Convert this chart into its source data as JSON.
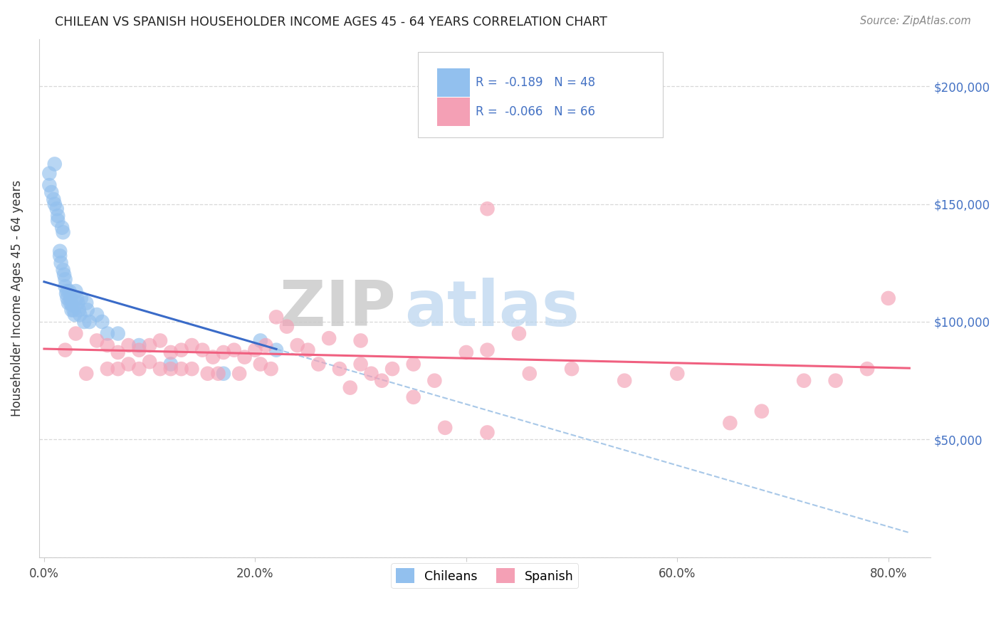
{
  "title": "CHILEAN VS SPANISH HOUSEHOLDER INCOME AGES 45 - 64 YEARS CORRELATION CHART",
  "source": "Source: ZipAtlas.com",
  "ylabel": "Householder Income Ages 45 - 64 years",
  "xlabel_ticks": [
    "0.0%",
    "20.0%",
    "40.0%",
    "60.0%",
    "80.0%"
  ],
  "xlabel_vals": [
    0.0,
    0.2,
    0.4,
    0.6,
    0.8
  ],
  "ylim": [
    0,
    220000
  ],
  "xlim": [
    -0.005,
    0.84
  ],
  "ytick_vals": [
    0,
    50000,
    100000,
    150000,
    200000
  ],
  "ytick_labels": [
    "",
    "$50,000",
    "$100,000",
    "$150,000",
    "$200,000"
  ],
  "watermark_zip": "ZIP",
  "watermark_atlas": "atlas",
  "legend1_text": "R =  -0.189   N = 48",
  "legend2_text": "R =  -0.066   N = 66",
  "chilean_color": "#92C0EE",
  "spanish_color": "#F4A0B5",
  "chilean_line_color": "#3A6BC8",
  "spanish_line_color": "#F06080",
  "dashed_line_color": "#A8C8E8",
  "background_color": "#ffffff",
  "grid_color": "#d8d8d8",
  "ch_slope": -130000,
  "ch_intercept": 117000,
  "ch_line_x0": 0.0,
  "ch_line_x1": 0.22,
  "sp_slope": -10000,
  "sp_intercept": 88500,
  "sp_line_x0": 0.0,
  "sp_line_x1": 0.82,
  "dash_line_x0": 0.22,
  "dash_line_x1": 0.82,
  "chilean_x": [
    0.005,
    0.005,
    0.007,
    0.009,
    0.01,
    0.01,
    0.012,
    0.013,
    0.013,
    0.015,
    0.015,
    0.016,
    0.017,
    0.018,
    0.018,
    0.019,
    0.02,
    0.02,
    0.021,
    0.022,
    0.022,
    0.023,
    0.024,
    0.025,
    0.025,
    0.026,
    0.027,
    0.028,
    0.029,
    0.03,
    0.031,
    0.032,
    0.033,
    0.034,
    0.035,
    0.038,
    0.04,
    0.041,
    0.043,
    0.05,
    0.055,
    0.06,
    0.07,
    0.09,
    0.12,
    0.17,
    0.205,
    0.22
  ],
  "chilean_y": [
    163000,
    158000,
    155000,
    152000,
    167000,
    150000,
    148000,
    145000,
    143000,
    130000,
    128000,
    125000,
    140000,
    138000,
    122000,
    120000,
    118000,
    115000,
    112000,
    113000,
    110000,
    108000,
    113000,
    110000,
    108000,
    105000,
    107000,
    105000,
    103000,
    113000,
    110000,
    108000,
    105000,
    103000,
    110000,
    100000,
    108000,
    105000,
    100000,
    103000,
    100000,
    95000,
    95000,
    90000,
    82000,
    78000,
    92000,
    88000
  ],
  "spanish_x": [
    0.02,
    0.03,
    0.04,
    0.05,
    0.06,
    0.06,
    0.07,
    0.07,
    0.08,
    0.08,
    0.09,
    0.09,
    0.1,
    0.1,
    0.11,
    0.11,
    0.12,
    0.12,
    0.13,
    0.13,
    0.14,
    0.14,
    0.15,
    0.155,
    0.16,
    0.165,
    0.17,
    0.18,
    0.185,
    0.19,
    0.2,
    0.205,
    0.21,
    0.215,
    0.22,
    0.23,
    0.24,
    0.25,
    0.26,
    0.27,
    0.28,
    0.29,
    0.3,
    0.31,
    0.32,
    0.33,
    0.35,
    0.37,
    0.4,
    0.42,
    0.45,
    0.3,
    0.35,
    0.38,
    0.42,
    0.46,
    0.5,
    0.55,
    0.6,
    0.65,
    0.68,
    0.72,
    0.75,
    0.78,
    0.8,
    0.42
  ],
  "spanish_y": [
    88000,
    95000,
    78000,
    92000,
    90000,
    80000,
    87000,
    80000,
    90000,
    82000,
    88000,
    80000,
    90000,
    83000,
    92000,
    80000,
    87000,
    80000,
    88000,
    80000,
    90000,
    80000,
    88000,
    78000,
    85000,
    78000,
    87000,
    88000,
    78000,
    85000,
    88000,
    82000,
    90000,
    80000,
    102000,
    98000,
    90000,
    88000,
    82000,
    93000,
    80000,
    72000,
    82000,
    78000,
    75000,
    80000,
    68000,
    75000,
    87000,
    53000,
    95000,
    92000,
    82000,
    55000,
    88000,
    78000,
    80000,
    75000,
    78000,
    57000,
    62000,
    75000,
    75000,
    80000,
    110000,
    148000
  ]
}
